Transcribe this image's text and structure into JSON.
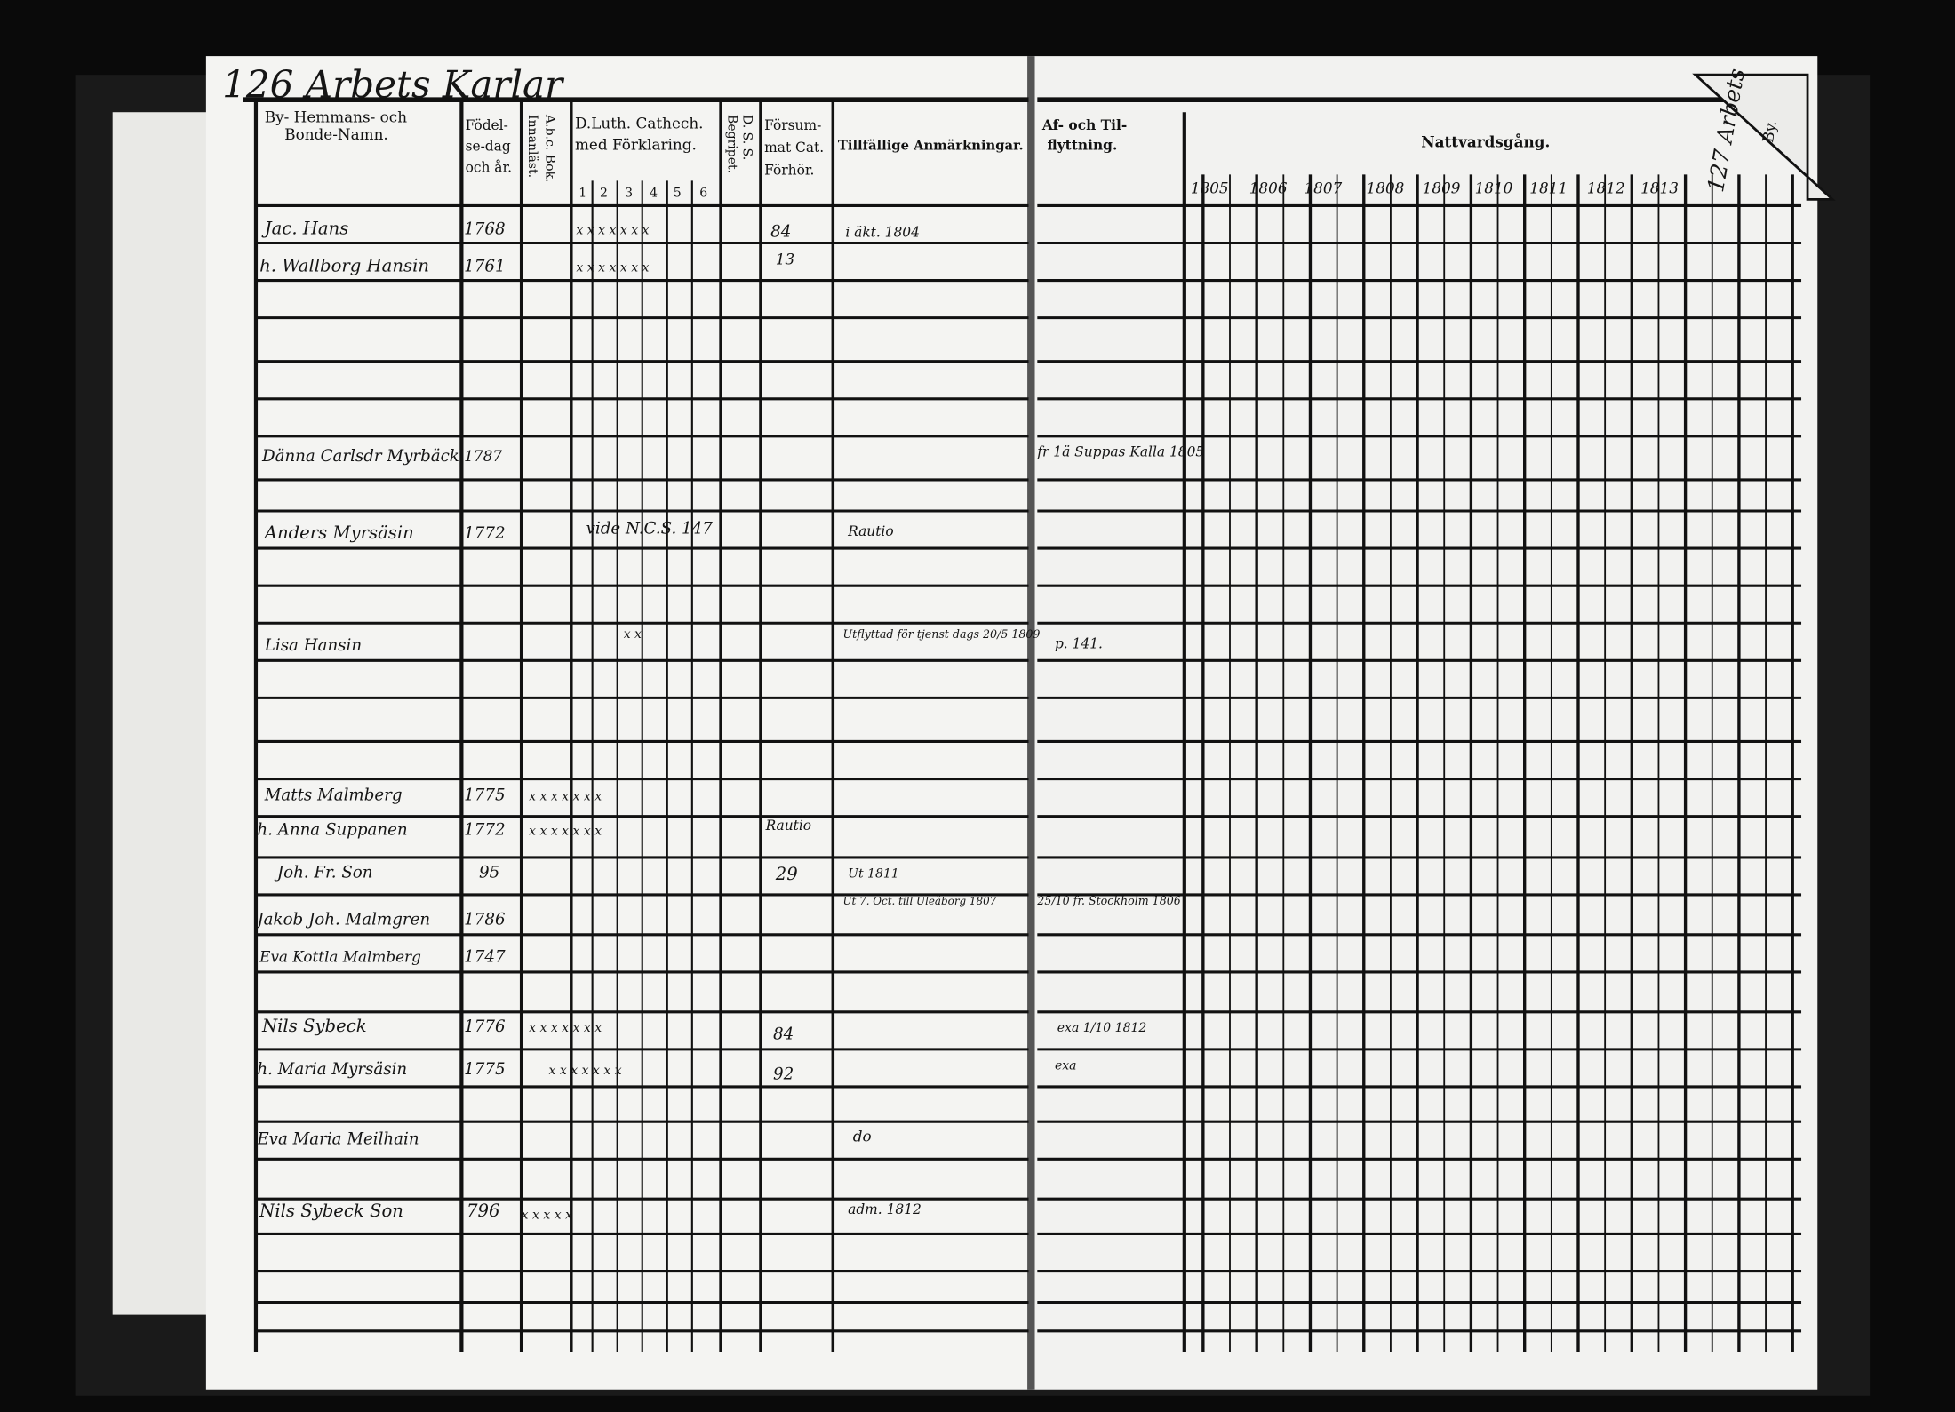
{
  "left_page": {
    "page_heading": "126 Arbets Karlar",
    "headers": {
      "name_line1": "By- Hemmans- och",
      "name_line2": "Bonde-Namn.",
      "birth_line1": "Födel-",
      "birth_line2": "se-dag",
      "birth_line3": "och år.",
      "abc": "A.b.c. Bok.",
      "innanlast": "Innanläst.",
      "catechism_line1": "D.Luth. Cathech.",
      "catechism_line2": "med Förklaring.",
      "catechism_parts": [
        "1",
        "2",
        "3",
        "4",
        "5",
        "6"
      ],
      "dss": "D. S. S.",
      "begripet": "Begripet.",
      "forsummat_line1": "Försum-",
      "forsummat_line2": "mat Cat.",
      "forsummat_line3": "Förhör.",
      "remarks": "Tillfällige Anmärkningar."
    },
    "entries": [
      {
        "name": "Jac. Hans",
        "birth": "1768",
        "catechism": "x x x x x x x",
        "forhor": "84",
        "remark": "i äkt. 1804"
      },
      {
        "name": "h. Wallborg Hansin",
        "birth": "1761",
        "catechism": "x x x x x x x",
        "forhor": "13",
        "remark": ""
      },
      {
        "name": "Dänna Carlsdr Myrbäck",
        "birth": "1787",
        "catechism": "",
        "forhor": "",
        "remark": ""
      },
      {
        "name": "Anders Myrsäsin",
        "birth": "1772",
        "catechism": "vide N.C.S. 147",
        "forhor": "",
        "remark": "Rautio"
      },
      {
        "name": "Lisa Hansin",
        "birth": "",
        "catechism": "x x",
        "forhor": "",
        "remark": "Utflyttad för tjenst dags 20/5 1809"
      },
      {
        "name": "Matts Malmberg",
        "birth": "1775",
        "catechism": "x x x x x x x",
        "forhor": "",
        "remark": ""
      },
      {
        "name": "h. Anna Suppanen",
        "birth": "1772",
        "catechism": "x x x x x x x",
        "forhor": "Rautio",
        "remark": ""
      },
      {
        "name": "Joh. Fr. Son",
        "birth": "95",
        "catechism": "",
        "forhor": "29",
        "remark": "Ut 1811"
      },
      {
        "name": "Jakob Joh. Malmgren",
        "birth": "1786",
        "catechism": "",
        "forhor": "",
        "remark": "Ut 7. Oct. till Uleåborg 1807"
      },
      {
        "name": "Eva Kottla Malmberg",
        "birth": "1747",
        "catechism": "",
        "forhor": "",
        "remark": ""
      },
      {
        "name": "Nils Sybeck",
        "birth": "1776",
        "catechism": "x x x x x x x",
        "forhor": "84",
        "remark": ""
      },
      {
        "name": "h. Maria Myrsäsin",
        "birth": "1775",
        "catechism": "x x x x x x x",
        "forhor": "92",
        "remark": ""
      },
      {
        "name": "Eva Maria Meilhain",
        "birth": "",
        "catechism": "",
        "forhor": "",
        "remark": "do"
      },
      {
        "name": "Nils Sybeck Son",
        "birth": "796",
        "catechism": "x x x x x",
        "forhor": "",
        "remark": "adm. 1812"
      }
    ]
  },
  "right_page": {
    "page_heading": "127 Arbets",
    "corner_label": "By.",
    "headers": {
      "moving_line1": "Af- och Til-",
      "moving_line2": "flyttning.",
      "communion": "Nattvardsgång."
    },
    "years": [
      "1805",
      "1806",
      "1807",
      "1808",
      "1809",
      "1810",
      "1811",
      "1812",
      "1813"
    ],
    "moving_notes": [
      "fr 1ä Suppas Kalla 1805",
      "p. 141.",
      "25/10 fr. Stockholm 1806",
      "exa 1/10 1812",
      "exa"
    ]
  },
  "colors": {
    "paper": "#f4f4f2",
    "ink": "#111111",
    "background": "#0a0a0a"
  }
}
